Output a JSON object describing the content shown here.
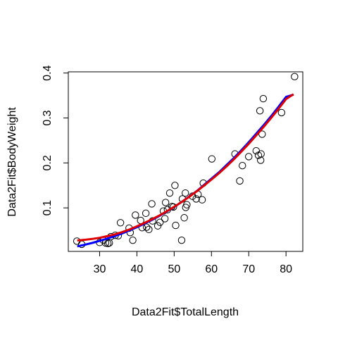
{
  "chart_data": {
    "type": "scatter",
    "xlabel": "Data2Fit$TotalLength",
    "ylabel": "Data2Fit$BodyWeight",
    "xlim": [
      21.6,
      84.5
    ],
    "ylim": [
      0.0032,
      0.4027
    ],
    "x_ticks": [
      30,
      40,
      50,
      60,
      70,
      80
    ],
    "y_ticks": [
      0.1,
      0.2,
      0.3,
      0.4
    ],
    "x_tick_labels": [
      "30",
      "40",
      "50",
      "60",
      "70",
      "80"
    ],
    "y_tick_labels": [
      "0.1",
      "0.2",
      "0.3",
      "0.4"
    ],
    "grid": false,
    "legend": "none",
    "point_style": "open-circle",
    "points": [
      {
        "x": 23.9,
        "y": 0.026
      },
      {
        "x": 25.2,
        "y": 0.019
      },
      {
        "x": 30.0,
        "y": 0.023
      },
      {
        "x": 31.0,
        "y": 0.028
      },
      {
        "x": 31.6,
        "y": 0.022
      },
      {
        "x": 32.2,
        "y": 0.021
      },
      {
        "x": 32.6,
        "y": 0.022
      },
      {
        "x": 33.0,
        "y": 0.036
      },
      {
        "x": 34.2,
        "y": 0.039
      },
      {
        "x": 35.0,
        "y": 0.038
      },
      {
        "x": 35.6,
        "y": 0.067
      },
      {
        "x": 37.9,
        "y": 0.055
      },
      {
        "x": 38.2,
        "y": 0.045
      },
      {
        "x": 38.9,
        "y": 0.028
      },
      {
        "x": 39.6,
        "y": 0.084
      },
      {
        "x": 41.0,
        "y": 0.072
      },
      {
        "x": 41.4,
        "y": 0.056
      },
      {
        "x": 42.4,
        "y": 0.088
      },
      {
        "x": 42.6,
        "y": 0.057
      },
      {
        "x": 43.2,
        "y": 0.052
      },
      {
        "x": 44.0,
        "y": 0.109
      },
      {
        "x": 44.2,
        "y": 0.071
      },
      {
        "x": 45.6,
        "y": 0.06
      },
      {
        "x": 46.2,
        "y": 0.068
      },
      {
        "x": 47.1,
        "y": 0.093
      },
      {
        "x": 47.5,
        "y": 0.076
      },
      {
        "x": 47.7,
        "y": 0.112
      },
      {
        "x": 48.2,
        "y": 0.096
      },
      {
        "x": 48.8,
        "y": 0.133
      },
      {
        "x": 49.4,
        "y": 0.103
      },
      {
        "x": 49.8,
        "y": 0.102
      },
      {
        "x": 50.2,
        "y": 0.15
      },
      {
        "x": 50.4,
        "y": 0.061
      },
      {
        "x": 52.0,
        "y": 0.028
      },
      {
        "x": 52.2,
        "y": 0.12
      },
      {
        "x": 52.7,
        "y": 0.078
      },
      {
        "x": 53.0,
        "y": 0.133
      },
      {
        "x": 53.1,
        "y": 0.101
      },
      {
        "x": 53.4,
        "y": 0.107
      },
      {
        "x": 54.9,
        "y": 0.126
      },
      {
        "x": 55.9,
        "y": 0.12
      },
      {
        "x": 56.4,
        "y": 0.13
      },
      {
        "x": 57.5,
        "y": 0.118
      },
      {
        "x": 57.8,
        "y": 0.155
      },
      {
        "x": 60.1,
        "y": 0.209
      },
      {
        "x": 66.3,
        "y": 0.22
      },
      {
        "x": 67.6,
        "y": 0.16
      },
      {
        "x": 68.3,
        "y": 0.194
      },
      {
        "x": 70.0,
        "y": 0.214
      },
      {
        "x": 72.0,
        "y": 0.227
      },
      {
        "x": 72.6,
        "y": 0.217
      },
      {
        "x": 73.0,
        "y": 0.316
      },
      {
        "x": 73.2,
        "y": 0.206
      },
      {
        "x": 73.3,
        "y": 0.22
      },
      {
        "x": 73.6,
        "y": 0.264
      },
      {
        "x": 73.9,
        "y": 0.343
      },
      {
        "x": 78.8,
        "y": 0.312
      },
      {
        "x": 82.3,
        "y": 0.392
      }
    ],
    "series": [
      {
        "color": "#0000ff",
        "stroke": "line",
        "x": [
          24,
          26,
          28,
          30,
          32,
          34,
          36,
          38,
          40,
          42,
          44,
          46,
          48,
          50,
          52,
          54,
          56,
          58,
          60,
          62,
          64,
          66,
          68,
          70,
          72,
          74,
          76,
          78,
          80,
          82
        ],
        "y": [
          0.0145,
          0.018,
          0.022,
          0.0265,
          0.0315,
          0.037,
          0.043,
          0.05,
          0.057,
          0.065,
          0.073,
          0.082,
          0.092,
          0.102,
          0.113,
          0.125,
          0.137,
          0.151,
          0.165,
          0.179,
          0.195,
          0.211,
          0.228,
          0.246,
          0.265,
          0.284,
          0.304,
          0.325,
          0.347,
          0.352
        ]
      },
      {
        "color": "#e00000",
        "stroke": "line",
        "x": [
          24,
          26,
          28,
          30,
          32,
          34,
          36,
          38,
          40,
          42,
          44,
          46,
          48,
          50,
          52,
          54,
          56,
          58,
          60,
          62,
          64,
          66,
          68,
          70,
          72,
          74,
          76,
          78,
          80,
          82
        ],
        "y": [
          0.0275,
          0.029,
          0.031,
          0.0335,
          0.037,
          0.041,
          0.046,
          0.052,
          0.059,
          0.0665,
          0.0745,
          0.083,
          0.0925,
          0.1025,
          0.113,
          0.1245,
          0.1365,
          0.1495,
          0.163,
          0.177,
          0.192,
          0.208,
          0.225,
          0.2425,
          0.261,
          0.28,
          0.3,
          0.3205,
          0.342,
          0.353
        ]
      }
    ]
  }
}
